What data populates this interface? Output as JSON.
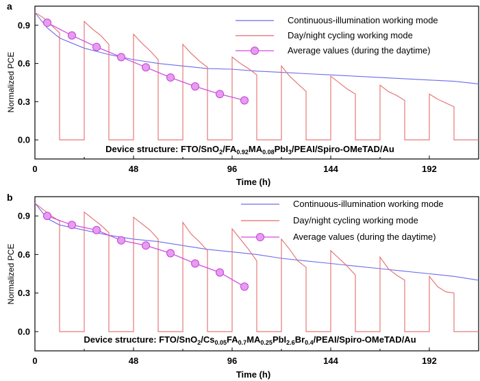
{
  "chart_data": [
    {
      "panel": "a",
      "type": "line",
      "xlabel": "Time (h)",
      "ylabel": "Normalized PCE",
      "xlim": [
        0,
        216
      ],
      "ylim": [
        -0.15,
        1.05
      ],
      "xticks": [
        "0",
        "48",
        "96",
        "144",
        "192"
      ],
      "yticks": [
        "0.0",
        "0.3",
        "0.6",
        "0.9"
      ],
      "annotation": {
        "prefix": "Device structure: FTO/SnO",
        "sub1": "2",
        "mid1": "/FA",
        "sub2": "0.92",
        "mid2": "MA",
        "sub3": "0.08",
        "mid3": "PbI",
        "sub4": "3",
        "suffix": "/PEAI/Spiro-OMeTAD/Au"
      },
      "legend_position": "top-right",
      "series": [
        {
          "name": "Continuous-illumination working mode",
          "color": "#6a6aee",
          "x": [
            0,
            6,
            12,
            24,
            36,
            48,
            60,
            72,
            84,
            96,
            108,
            120,
            132,
            144,
            156,
            168,
            180,
            192,
            204,
            216
          ],
          "y": [
            1.0,
            0.88,
            0.8,
            0.72,
            0.67,
            0.63,
            0.6,
            0.58,
            0.56,
            0.555,
            0.54,
            0.53,
            0.52,
            0.51,
            0.5,
            0.49,
            0.48,
            0.47,
            0.46,
            0.44
          ]
        },
        {
          "name": "Day/night cycling working mode",
          "color": "#e36b6b",
          "x": [
            0,
            4,
            8,
            12,
            12.01,
            24,
            24.01,
            28,
            32,
            36,
            36.01,
            48,
            48.01,
            52,
            56,
            60,
            60.01,
            72,
            72.01,
            76,
            80,
            84,
            84.01,
            96,
            96.01,
            100,
            104,
            108,
            108.01,
            120,
            120.01,
            124,
            128,
            132,
            132.01,
            144,
            144.01,
            148,
            152,
            156,
            156.01,
            168,
            168.01,
            172,
            176,
            180,
            180.01,
            192,
            192.01,
            196,
            200,
            204,
            204.01,
            216
          ],
          "y": [
            1.0,
            0.96,
            0.9,
            0.84,
            0.0,
            0.0,
            0.93,
            0.87,
            0.82,
            0.75,
            0.0,
            0.0,
            0.83,
            0.76,
            0.7,
            0.63,
            0.0,
            0.0,
            0.75,
            0.68,
            0.62,
            0.57,
            0.0,
            0.0,
            0.65,
            0.6,
            0.56,
            0.51,
            0.0,
            0.0,
            0.58,
            0.5,
            0.44,
            0.38,
            0.0,
            0.0,
            0.5,
            0.45,
            0.4,
            0.36,
            0.0,
            0.0,
            0.43,
            0.38,
            0.35,
            0.31,
            0.0,
            0.0,
            0.36,
            0.32,
            0.29,
            0.26,
            0.0,
            0.0
          ]
        },
        {
          "name": "Average values (during the daytime)",
          "color": "#d14be0",
          "x": [
            6,
            18,
            30,
            42,
            54,
            66,
            78,
            90,
            102
          ],
          "y": [
            0.92,
            0.82,
            0.73,
            0.65,
            0.57,
            0.49,
            0.42,
            0.36,
            0.31
          ]
        }
      ]
    },
    {
      "panel": "b",
      "type": "line",
      "xlabel": "Time (h)",
      "ylabel": "Normalized PCE",
      "xlim": [
        0,
        216
      ],
      "ylim": [
        -0.15,
        1.05
      ],
      "xticks": [
        "0",
        "48",
        "96",
        "144",
        "192"
      ],
      "yticks": [
        "0.0",
        "0.3",
        "0.6",
        "0.9"
      ],
      "annotation": {
        "prefix": "Device structure: FTO/SnO",
        "sub1": "2",
        "mid1": "/Cs",
        "sub2": "0.05",
        "mid2": "FA",
        "sub3": "0.7",
        "mid3": "MA",
        "sub4": "0.25",
        "mid4": "PbI",
        "sub5": "2.6",
        "mid5": "Br",
        "sub6": "0.4",
        "suffix": "/PEAI/Spiro-OMeTAD/Au"
      },
      "legend_position": "top-right",
      "series": [
        {
          "name": "Continuous-illumination working mode",
          "color": "#6a6aee",
          "x": [
            0,
            6,
            12,
            24,
            36,
            48,
            60,
            72,
            84,
            96,
            108,
            120,
            132,
            144,
            156,
            168,
            180,
            192,
            204,
            216
          ],
          "y": [
            1.0,
            0.88,
            0.83,
            0.79,
            0.75,
            0.72,
            0.7,
            0.67,
            0.64,
            0.62,
            0.6,
            0.57,
            0.55,
            0.53,
            0.51,
            0.49,
            0.47,
            0.45,
            0.43,
            0.4
          ]
        },
        {
          "name": "Day/night cycling working mode",
          "color": "#e36b6b",
          "x": [
            0,
            4,
            8,
            12,
            12.01,
            24,
            24.01,
            28,
            32,
            36,
            36.01,
            48,
            48.01,
            52,
            56,
            60,
            60.01,
            72,
            72.01,
            76,
            80,
            84,
            84.01,
            96,
            96.01,
            100,
            104,
            108,
            108.01,
            120,
            120.01,
            124,
            128,
            132,
            132.01,
            144,
            144.01,
            148,
            152,
            156,
            156.01,
            168,
            168.01,
            172,
            176,
            180,
            180.01,
            192,
            192.01,
            196,
            200,
            204,
            204.01,
            216
          ],
          "y": [
            1.0,
            0.95,
            0.9,
            0.86,
            0.0,
            0.0,
            0.93,
            0.88,
            0.83,
            0.77,
            0.0,
            0.0,
            0.89,
            0.84,
            0.79,
            0.72,
            0.0,
            0.0,
            0.85,
            0.76,
            0.7,
            0.63,
            0.0,
            0.0,
            0.8,
            0.72,
            0.64,
            0.55,
            0.0,
            0.0,
            0.72,
            0.64,
            0.55,
            0.5,
            0.0,
            0.0,
            0.63,
            0.57,
            0.51,
            0.44,
            0.0,
            0.0,
            0.58,
            0.49,
            0.44,
            0.4,
            0.0,
            0.0,
            0.43,
            0.35,
            0.31,
            0.3,
            0.0,
            0.0
          ]
        },
        {
          "name": "Average values (during the daytime)",
          "color": "#d14be0",
          "x": [
            6,
            18,
            30,
            42,
            54,
            66,
            78,
            90,
            102
          ],
          "y": [
            0.9,
            0.83,
            0.79,
            0.71,
            0.67,
            0.61,
            0.53,
            0.46,
            0.35
          ]
        }
      ]
    }
  ]
}
